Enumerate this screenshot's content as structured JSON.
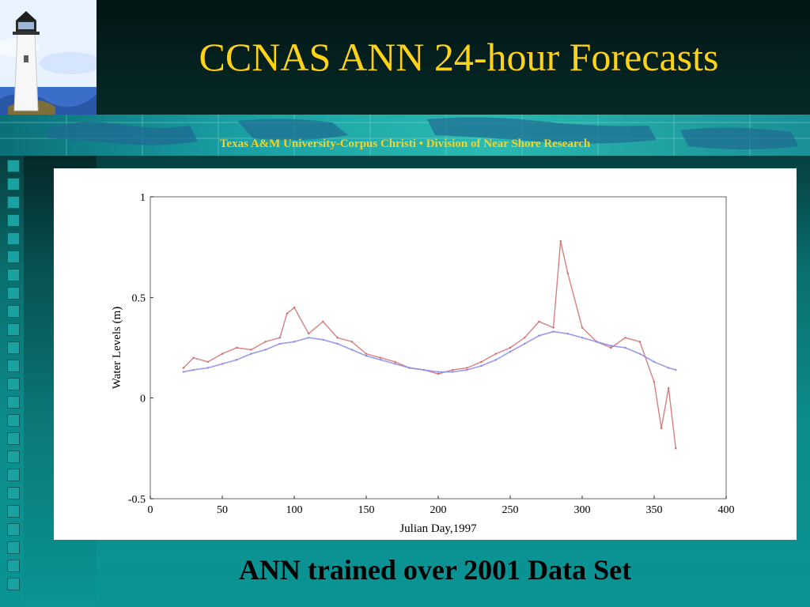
{
  "slide": {
    "title": "CCNAS ANN 24-hour Forecasts",
    "subtitle": "Texas A&M University-Corpus Christi • Division of Near Shore Research",
    "caption": "ANN trained over 2001 Data Set",
    "title_color": "#ffd21a",
    "subtitle_color": "#f3d22a"
  },
  "icons": {
    "lighthouse": "lighthouse-icon",
    "map": "world-map-band"
  },
  "chart_data": {
    "type": "line",
    "title": "",
    "xlabel": "Julian Day,1997",
    "ylabel": "Water Levels (m)",
    "xlim": [
      0,
      400
    ],
    "ylim": [
      -0.5,
      1
    ],
    "x_ticks": [
      0,
      50,
      100,
      150,
      200,
      250,
      300,
      350,
      400
    ],
    "x_tick_labels": [
      "0",
      "50",
      "100",
      "150",
      "200",
      "250",
      "300",
      "350",
      "400"
    ],
    "y_ticks": [
      -0.5,
      0,
      0.5,
      1
    ],
    "y_tick_labels": [
      "-0.5",
      "0",
      "0.5",
      "1"
    ],
    "grid": false,
    "series": [
      {
        "color": "#d06a6a",
        "x": [
          23,
          30,
          40,
          50,
          60,
          70,
          80,
          90,
          95,
          100,
          110,
          120,
          130,
          140,
          150,
          160,
          170,
          180,
          190,
          200,
          210,
          220,
          230,
          240,
          250,
          260,
          270,
          280,
          285,
          290,
          300,
          310,
          320,
          330,
          340,
          350,
          355,
          360,
          365
        ],
        "y": [
          0.15,
          0.2,
          0.18,
          0.22,
          0.25,
          0.24,
          0.28,
          0.3,
          0.42,
          0.45,
          0.32,
          0.38,
          0.3,
          0.28,
          0.22,
          0.2,
          0.18,
          0.15,
          0.14,
          0.12,
          0.14,
          0.15,
          0.18,
          0.22,
          0.25,
          0.3,
          0.38,
          0.35,
          0.78,
          0.62,
          0.35,
          0.28,
          0.25,
          0.3,
          0.28,
          0.08,
          -0.15,
          0.05,
          -0.25
        ]
      },
      {
        "color": "#8888ee",
        "x": [
          23,
          30,
          40,
          50,
          60,
          70,
          80,
          90,
          100,
          110,
          120,
          130,
          140,
          150,
          160,
          170,
          180,
          190,
          200,
          210,
          220,
          230,
          240,
          250,
          260,
          270,
          280,
          290,
          300,
          310,
          320,
          330,
          340,
          350,
          360,
          365
        ],
        "y": [
          0.13,
          0.14,
          0.15,
          0.17,
          0.19,
          0.22,
          0.24,
          0.27,
          0.28,
          0.3,
          0.29,
          0.27,
          0.24,
          0.21,
          0.19,
          0.17,
          0.15,
          0.14,
          0.13,
          0.13,
          0.14,
          0.16,
          0.19,
          0.23,
          0.27,
          0.31,
          0.33,
          0.32,
          0.3,
          0.28,
          0.26,
          0.25,
          0.22,
          0.18,
          0.15,
          0.14
        ]
      }
    ]
  }
}
